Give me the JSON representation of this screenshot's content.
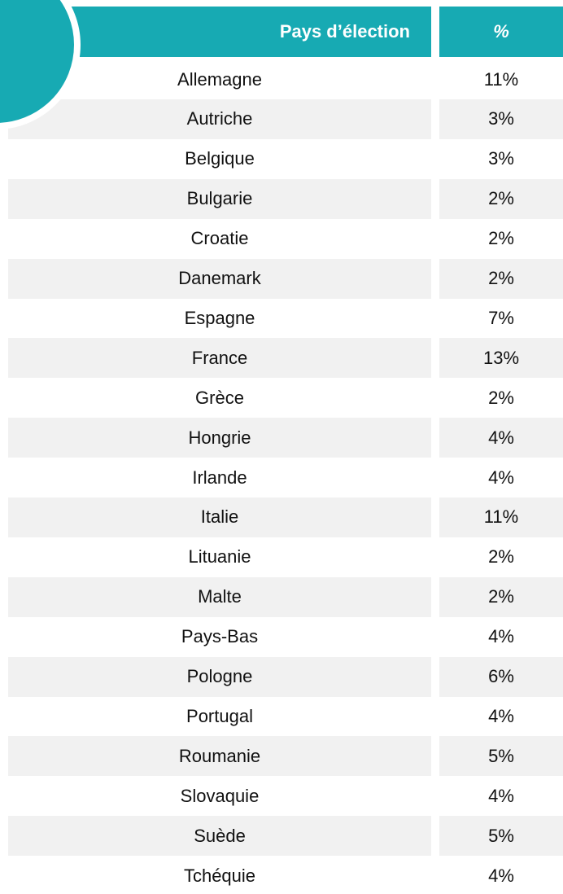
{
  "table": {
    "header": [
      "Pays d’élection",
      "%"
    ],
    "rows": [
      [
        "Allemagne",
        "11%"
      ],
      [
        "Autriche",
        "3%"
      ],
      [
        "Belgique",
        "3%"
      ],
      [
        "Bulgarie",
        "2%"
      ],
      [
        "Croatie",
        "2%"
      ],
      [
        "Danemark",
        "2%"
      ],
      [
        "Espagne",
        "7%"
      ],
      [
        "France",
        "13%"
      ],
      [
        "Grèce",
        "2%"
      ],
      [
        "Hongrie",
        "4%"
      ],
      [
        "Irlande",
        "4%"
      ],
      [
        "Italie",
        "11%"
      ],
      [
        "Lituanie",
        "2%"
      ],
      [
        "Malte",
        "2%"
      ],
      [
        "Pays-Bas",
        "4%"
      ],
      [
        "Pologne",
        "6%"
      ],
      [
        "Portugal",
        "4%"
      ],
      [
        "Roumanie",
        "5%"
      ],
      [
        "Slovaquie",
        "4%"
      ],
      [
        "Suède",
        "5%"
      ],
      [
        "Tchéquie",
        "4%"
      ]
    ]
  }
}
